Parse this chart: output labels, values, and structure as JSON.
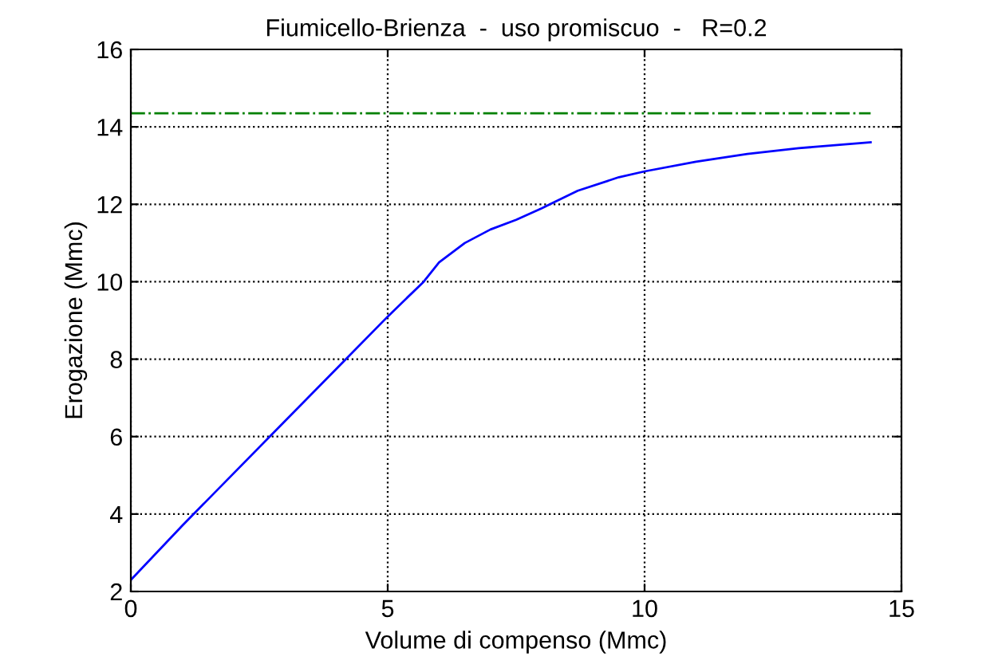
{
  "chart_data": {
    "type": "line",
    "title": "Fiumicello-Brienza  -  uso promiscuo  -   R=0.2",
    "xlabel": "Volume di compenso (Mmc)",
    "ylabel": "Erogazione (Mmc)",
    "series": [
      {
        "color": "#0000ff",
        "line_style": "solid",
        "x": [
          0,
          1,
          2,
          3,
          4,
          5,
          5.7,
          6,
          6.5,
          7,
          7.5,
          8,
          8.7,
          9.5,
          10,
          11,
          12,
          13,
          14.4
        ],
        "values": [
          2.3,
          3.7,
          5.05,
          6.4,
          7.75,
          9.1,
          10.0,
          10.5,
          11.0,
          11.35,
          11.6,
          11.9,
          12.35,
          12.7,
          12.85,
          13.1,
          13.3,
          13.45,
          13.6
        ]
      },
      {
        "color": "#008000",
        "line_style": "dashdot",
        "x": [
          0,
          14.4
        ],
        "values": [
          14.35,
          14.35
        ]
      }
    ],
    "xlim": [
      0,
      15
    ],
    "xticks": [
      0,
      5,
      10,
      15
    ],
    "ylim": [
      2,
      16
    ],
    "yticks": [
      2,
      4,
      6,
      8,
      10,
      12,
      14,
      16
    ],
    "grid": true,
    "legend": false
  }
}
